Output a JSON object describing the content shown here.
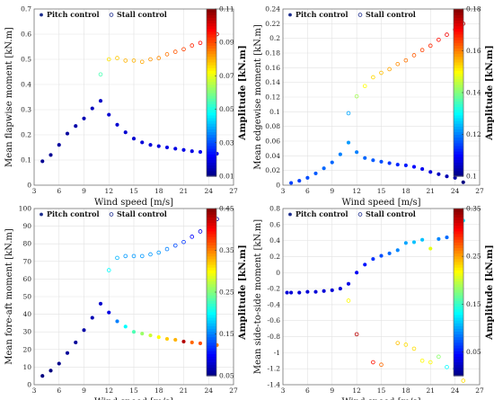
{
  "chart_data": [
    {
      "type": "scatter",
      "xlabel": "Wind speed [m/s]",
      "ylabel": "Mean flapwise moment [kN.m]",
      "xlim": [
        3,
        27
      ],
      "ylim": [
        0,
        0.7
      ],
      "xticks": [
        "3",
        "6",
        "9",
        "12",
        "15",
        "18",
        "21",
        "24",
        "27"
      ],
      "yticks": [
        "0",
        "0.1",
        "0.2",
        "0.3",
        "0.4",
        "0.5",
        "0.6",
        "0.7"
      ],
      "colorbar": {
        "label": "Amplitude [kN.m]",
        "range": [
          0.01,
          0.11
        ],
        "ticks": [
          "0.01",
          "0.03",
          "0.05",
          "0.07",
          "0.09",
          "0.11"
        ]
      },
      "legend": {
        "position": "top-left",
        "entries": [
          "Pitch control",
          "Stall control"
        ]
      },
      "grid": true,
      "series": [
        {
          "name": "Pitch control",
          "marker": "filled",
          "x": [
            4,
            5,
            6,
            7,
            8,
            9,
            10,
            11,
            12,
            13,
            14,
            15,
            16,
            17,
            18,
            19,
            20,
            21,
            22,
            23,
            24,
            25
          ],
          "y": [
            0.095,
            0.12,
            0.16,
            0.205,
            0.235,
            0.265,
            0.305,
            0.335,
            0.28,
            0.24,
            0.21,
            0.185,
            0.17,
            0.16,
            0.155,
            0.15,
            0.145,
            0.14,
            0.135,
            0.132,
            0.13,
            0.125
          ],
          "amplitude": [
            0.012,
            0.012,
            0.013,
            0.013,
            0.014,
            0.015,
            0.016,
            0.017,
            0.018,
            0.018,
            0.018,
            0.018,
            0.019,
            0.019,
            0.019,
            0.02,
            0.02,
            0.02,
            0.02,
            0.021,
            0.021,
            0.021
          ]
        },
        {
          "name": "Stall control",
          "marker": "open",
          "x": [
            11,
            12,
            13,
            14,
            15,
            16,
            17,
            18,
            19,
            20,
            21,
            22,
            23,
            24,
            25
          ],
          "y": [
            0.44,
            0.5,
            0.505,
            0.495,
            0.495,
            0.49,
            0.5,
            0.505,
            0.52,
            0.53,
            0.54,
            0.555,
            0.565,
            0.58,
            0.6
          ],
          "amplitude": [
            0.055,
            0.075,
            0.078,
            0.08,
            0.08,
            0.081,
            0.083,
            0.084,
            0.086,
            0.089,
            0.091,
            0.094,
            0.097,
            0.1,
            0.105
          ]
        }
      ]
    },
    {
      "type": "scatter",
      "xlabel": "Wind speed [m/s]",
      "ylabel": "Mean edgewise moment [kN.m]",
      "xlim": [
        3,
        27
      ],
      "ylim": [
        0,
        0.24
      ],
      "xticks": [
        "3",
        "6",
        "9",
        "12",
        "15",
        "18",
        "21",
        "24",
        "27"
      ],
      "yticks": [
        "0",
        "0.02",
        "0.04",
        "0.06",
        "0.08",
        "0.1",
        "0.12",
        "0.14",
        "0.16",
        "0.18",
        "0.2",
        "0.22",
        "0.24"
      ],
      "colorbar": {
        "label": "Amplitude [kN.m]",
        "range": [
          0.1,
          0.18
        ],
        "ticks": [
          "0.1",
          "0.12",
          "0.14",
          "0.16",
          "0.18"
        ]
      },
      "legend": {
        "position": "top-left",
        "entries": [
          "Pitch control",
          "Stall control"
        ]
      },
      "grid": true,
      "series": [
        {
          "name": "Pitch control",
          "marker": "filled",
          "x": [
            4,
            5,
            6,
            7,
            8,
            9,
            10,
            11,
            12,
            13,
            14,
            15,
            16,
            17,
            18,
            19,
            20,
            21,
            22,
            23,
            24,
            25
          ],
          "y": [
            0.003,
            0.006,
            0.01,
            0.016,
            0.023,
            0.031,
            0.042,
            0.058,
            0.045,
            0.037,
            0.034,
            0.032,
            0.03,
            0.028,
            0.027,
            0.025,
            0.022,
            0.018,
            0.015,
            0.012,
            0.01,
            0.004
          ],
          "amplitude": [
            0.115,
            0.115,
            0.116,
            0.117,
            0.118,
            0.118,
            0.12,
            0.122,
            0.12,
            0.118,
            0.117,
            0.116,
            0.114,
            0.113,
            0.112,
            0.11,
            0.109,
            0.107,
            0.105,
            0.104,
            0.103,
            0.1
          ]
        },
        {
          "name": "Stall control",
          "marker": "open",
          "x": [
            11,
            12,
            13,
            14,
            15,
            16,
            17,
            18,
            19,
            20,
            21,
            22,
            23,
            24,
            25
          ],
          "y": [
            0.098,
            0.121,
            0.135,
            0.147,
            0.153,
            0.158,
            0.165,
            0.17,
            0.177,
            0.184,
            0.19,
            0.198,
            0.205,
            0.212,
            0.22
          ],
          "amplitude": [
            0.123,
            0.143,
            0.15,
            0.153,
            0.155,
            0.157,
            0.159,
            0.161,
            0.163,
            0.165,
            0.167,
            0.169,
            0.171,
            0.173,
            0.175
          ]
        }
      ]
    },
    {
      "type": "scatter",
      "xlabel": "Wind speed [m/s]",
      "ylabel": "Mean fore-aft moment [kN.m]",
      "xlim": [
        3,
        27
      ],
      "ylim": [
        0,
        100
      ],
      "xticks": [
        "3",
        "6",
        "9",
        "12",
        "15",
        "18",
        "21",
        "24",
        "27"
      ],
      "yticks": [
        "0",
        "10",
        "20",
        "30",
        "40",
        "50",
        "60",
        "70",
        "80",
        "90",
        "100"
      ],
      "colorbar": {
        "label": "Amplitude [kN.m]",
        "range": [
          0.05,
          0.45
        ],
        "ticks": [
          "0.05",
          "0.15",
          "0.25",
          "0.35",
          "0.45"
        ]
      },
      "legend": {
        "position": "top-left",
        "entries": [
          "Pitch control",
          "Stall control"
        ]
      },
      "grid": true,
      "series": [
        {
          "name": "Pitch control",
          "marker": "filled",
          "x": [
            4,
            5,
            6,
            7,
            8,
            9,
            10,
            11,
            12,
            13,
            14,
            15,
            16,
            17,
            18,
            19,
            20,
            21,
            22,
            23,
            24,
            25
          ],
          "y": [
            5,
            8,
            12,
            18,
            24,
            31,
            38,
            46,
            41,
            36,
            33,
            30,
            29,
            28,
            27,
            26,
            25.5,
            24.5,
            24,
            23.5,
            23,
            22.5
          ],
          "amplitude": [
            0.05,
            0.05,
            0.055,
            0.06,
            0.06,
            0.065,
            0.07,
            0.08,
            0.09,
            0.15,
            0.2,
            0.23,
            0.26,
            0.28,
            0.3,
            0.32,
            0.33,
            0.43,
            0.36,
            0.37,
            0.36,
            0.35
          ]
        },
        {
          "name": "Stall control",
          "marker": "open",
          "x": [
            12,
            13,
            14,
            15,
            16,
            17,
            18,
            19,
            20,
            21,
            22,
            23,
            24,
            25
          ],
          "y": [
            65,
            72,
            73,
            73,
            73,
            74,
            75,
            77,
            79,
            81,
            84,
            87,
            91,
            94
          ],
          "amplitude": [
            0.2,
            0.17,
            0.16,
            0.16,
            0.16,
            0.16,
            0.16,
            0.15,
            0.13,
            0.12,
            0.1,
            0.09,
            0.07,
            0.06
          ]
        }
      ]
    },
    {
      "type": "scatter",
      "xlabel": "Wind speed [m/s]",
      "ylabel": "Mean side-to-side moment [kN.m]",
      "xlim": [
        3,
        27
      ],
      "ylim": [
        -1.4,
        0.8
      ],
      "xticks": [
        "3",
        "6",
        "9",
        "12",
        "15",
        "18",
        "21",
        "24",
        "27"
      ],
      "yticks": [
        "-1.4",
        "-1.2",
        "-1",
        "-0.8",
        "-0.6",
        "-0.4",
        "-0.2",
        "0",
        "0.2",
        "0.4",
        "0.6",
        "0.8"
      ],
      "colorbar": {
        "label": "Amplitude [kN.m]",
        "range": [
          0,
          0.35
        ],
        "ticks": [
          "0.05",
          "0.15",
          "0.25",
          "0.35"
        ]
      },
      "legend": {
        "position": "top-left",
        "entries": [
          "Pitch control",
          "Stall control"
        ]
      },
      "grid": true,
      "series": [
        {
          "name": "Pitch control",
          "marker": "filled",
          "x": [
            3.5,
            4,
            5,
            6,
            7,
            8,
            9,
            10,
            11,
            12,
            13,
            14,
            15,
            16,
            17,
            18,
            19,
            20,
            21,
            22,
            23,
            24,
            25
          ],
          "y": [
            -0.25,
            -0.25,
            -0.25,
            -0.24,
            -0.24,
            -0.23,
            -0.22,
            -0.2,
            -0.14,
            0.0,
            0.1,
            0.17,
            0.21,
            0.24,
            0.28,
            0.37,
            0.38,
            0.41,
            0.3,
            0.42,
            0.44,
            0.5,
            0.65
          ],
          "amplitude": [
            0.03,
            0.03,
            0.03,
            0.03,
            0.03,
            0.03,
            0.03,
            0.03,
            0.035,
            0.04,
            0.05,
            0.06,
            0.07,
            0.08,
            0.09,
            0.1,
            0.11,
            0.11,
            0.21,
            0.09,
            0.08,
            0.1,
            0.12
          ]
        },
        {
          "name": "Stall control",
          "marker": "open",
          "x": [
            11,
            12,
            14,
            15,
            17,
            18,
            19,
            20,
            21,
            22,
            23,
            24,
            25
          ],
          "y": [
            -0.35,
            -0.77,
            -1.12,
            -1.15,
            -0.88,
            -0.9,
            -0.95,
            -1.1,
            -1.12,
            -1.05,
            -1.18,
            -1.2,
            -1.35
          ],
          "amplitude": [
            0.22,
            0.33,
            0.3,
            0.27,
            0.24,
            0.23,
            0.23,
            0.22,
            0.22,
            0.18,
            0.13,
            0.08,
            0.23
          ]
        }
      ]
    }
  ]
}
